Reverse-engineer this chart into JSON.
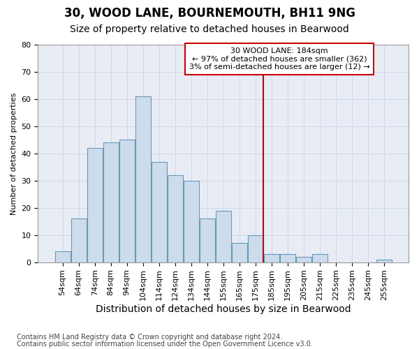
{
  "title1": "30, WOOD LANE, BOURNEMOUTH, BH11 9NG",
  "title2": "Size of property relative to detached houses in Bearwood",
  "xlabel": "Distribution of detached houses by size in Bearwood",
  "ylabel": "Number of detached properties",
  "footnote1": "Contains HM Land Registry data © Crown copyright and database right 2024.",
  "footnote2": "Contains public sector information licensed under the Open Government Licence v3.0.",
  "categories": [
    "54sqm",
    "64sqm",
    "74sqm",
    "84sqm",
    "94sqm",
    "104sqm",
    "114sqm",
    "124sqm",
    "134sqm",
    "144sqm",
    "155sqm",
    "165sqm",
    "175sqm",
    "185sqm",
    "195sqm",
    "205sqm",
    "215sqm",
    "225sqm",
    "235sqm",
    "245sqm",
    "255sqm"
  ],
  "values": [
    4,
    16,
    42,
    44,
    45,
    61,
    37,
    32,
    30,
    16,
    19,
    7,
    10,
    3,
    3,
    2,
    3,
    0,
    0,
    0,
    1
  ],
  "bar_color": "#ccdcec",
  "bar_edge_color": "#6699bb",
  "ref_line_color": "#cc0000",
  "annotation_box_edge_color": "#cc0000",
  "annotation_box_fill": "#ffffff",
  "reference_line_label": "30 WOOD LANE: 184sqm",
  "annotation_line1": "← 97% of detached houses are smaller (362)",
  "annotation_line2": "3% of semi-detached houses are larger (12) →",
  "ylim": [
    0,
    80
  ],
  "yticks": [
    0,
    10,
    20,
    30,
    40,
    50,
    60,
    70,
    80
  ],
  "grid_color": "#d0d8e8",
  "chart_bg_color": "#e8ecf4",
  "fig_bg_color": "#ffffff",
  "title1_fontsize": 12,
  "title2_fontsize": 10,
  "xlabel_fontsize": 10,
  "ylabel_fontsize": 8,
  "tick_fontsize": 8,
  "footnote_fontsize": 7
}
